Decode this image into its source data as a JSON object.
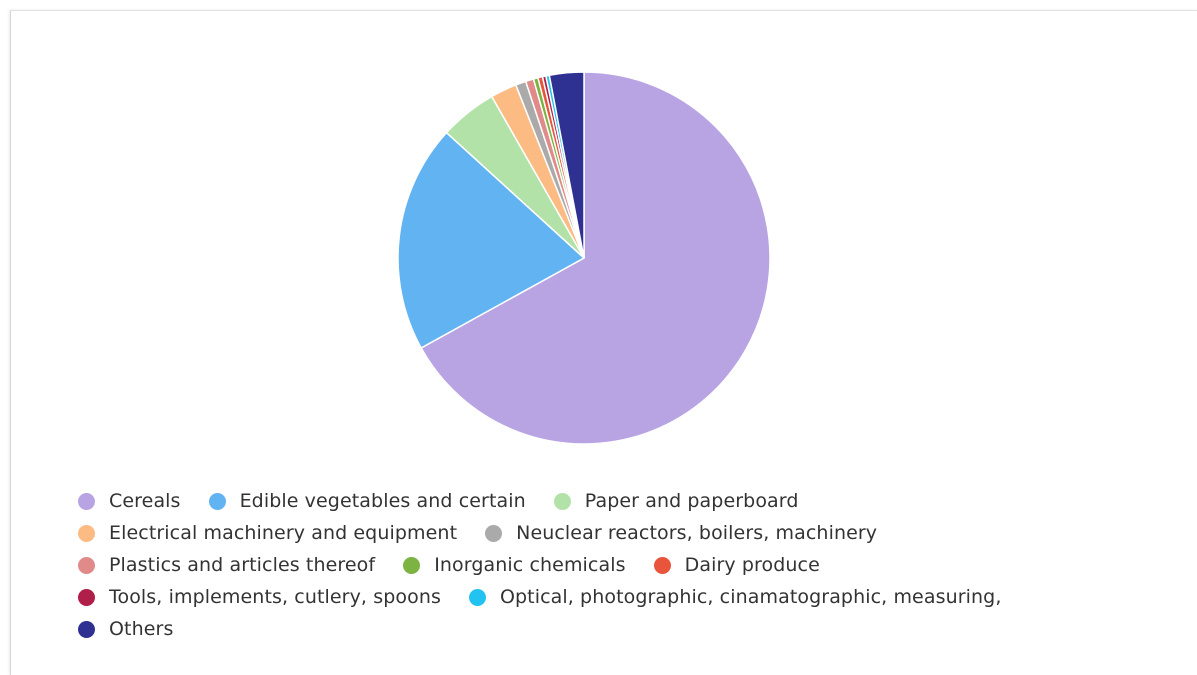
{
  "chart_data": {
    "type": "pie",
    "title": "",
    "slices": [
      {
        "label": "Cereals",
        "value": 67.3,
        "color": "#b8a3e3"
      },
      {
        "label": "Edible vegetables and certain",
        "value": 19.9,
        "color": "#62b3f2"
      },
      {
        "label": "Paper and paperboard",
        "value": 5.0,
        "color": "#b2e2a8"
      },
      {
        "label": "Electrical machinery and equipment",
        "value": 2.3,
        "color": "#fdbb84"
      },
      {
        "label": "Neuclear reactors, boilers, machinery",
        "value": 0.9,
        "color": "#aaaaaa"
      },
      {
        "label": "Plastics and articles thereof",
        "value": 0.7,
        "color": "#e08a8a"
      },
      {
        "label": "Inorganic chemicals",
        "value": 0.4,
        "color": "#7cb342"
      },
      {
        "label": "Dairy produce",
        "value": 0.4,
        "color": "#e8543c"
      },
      {
        "label": "Tools, implements, cutlery, spoons",
        "value": 0.3,
        "color": "#b01e4a"
      },
      {
        "label": "Optical, photographic, cinamatographic, measuring,",
        "value": 0.3,
        "color": "#22c3f0"
      },
      {
        "label": "Others",
        "value": 3.0,
        "color": "#2e3192"
      }
    ],
    "legend_placement": "bottom"
  },
  "legend": {
    "rows": [
      [
        0,
        1,
        2
      ],
      [
        3,
        4
      ],
      [
        5,
        6,
        7
      ],
      [
        8,
        9
      ],
      [
        10
      ]
    ]
  }
}
